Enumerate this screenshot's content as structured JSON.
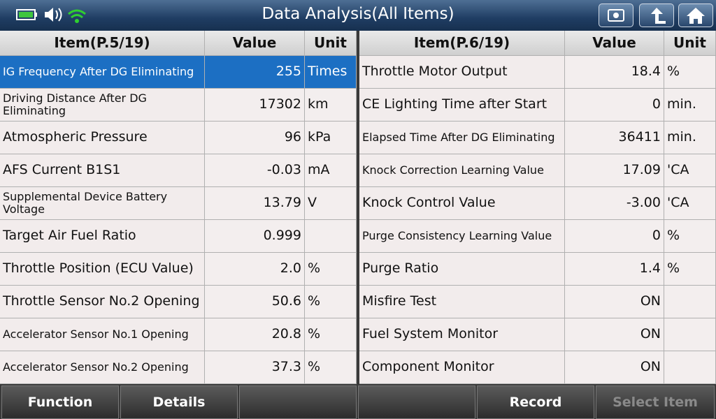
{
  "header": {
    "title": "Data Analysis(All Items)"
  },
  "left_table": {
    "columns": [
      "Item(P.5/19)",
      "Value",
      "Unit"
    ],
    "rows": [
      {
        "item": "IG Frequency After DG Eliminating",
        "value": "255",
        "unit": "Times"
      },
      {
        "item": "Driving Distance After DG Eliminating",
        "value": "17302",
        "unit": "km"
      },
      {
        "item": "Atmospheric Pressure",
        "value": "96",
        "unit": "kPa"
      },
      {
        "item": "AFS Current B1S1",
        "value": "-0.03",
        "unit": "mA"
      },
      {
        "item": "Supplemental Device Battery Voltage",
        "value": "13.79",
        "unit": "V"
      },
      {
        "item": "Target Air Fuel Ratio",
        "value": "0.999"
      },
      {
        "item": "Throttle Position (ECU Value)",
        "value": "2.0",
        "unit": "%"
      },
      {
        "item": "Throttle Sensor No.2 Opening",
        "value": "50.6",
        "unit": "%"
      },
      {
        "item": "Accelerator Sensor No.1 Opening",
        "value": "20.8",
        "unit": "%"
      },
      {
        "item": "Accelerator Sensor No.2 Opening",
        "value": "37.3",
        "unit": "%"
      }
    ]
  },
  "right_table": {
    "columns": [
      "Item(P.6/19)",
      "Value",
      "Unit"
    ],
    "rows": [
      {
        "item": "Throttle Motor Output",
        "value": "18.4",
        "unit": "%"
      },
      {
        "item": "CE Lighting Time after Start",
        "value": "0",
        "unit": "min."
      },
      {
        "item": "Elapsed Time After DG Eliminating",
        "value": "36411",
        "unit": "min."
      },
      {
        "item": "Knock Correction Learning Value",
        "value": "17.09",
        "unit": "'CA"
      },
      {
        "item": "Knock Control Value",
        "value": "-3.00",
        "unit": "'CA"
      },
      {
        "item": "Purge Consistency Learning Value",
        "value": "0",
        "unit": "%"
      },
      {
        "item": "Purge Ratio",
        "value": "1.4",
        "unit": "%"
      },
      {
        "item": "Misfire Test",
        "value": "ON"
      },
      {
        "item": "Fuel System Monitor",
        "value": "ON"
      },
      {
        "item": "Component Monitor",
        "value": "ON"
      }
    ]
  },
  "buttons": [
    "Function",
    "Details",
    "Record",
    "Select Item"
  ]
}
